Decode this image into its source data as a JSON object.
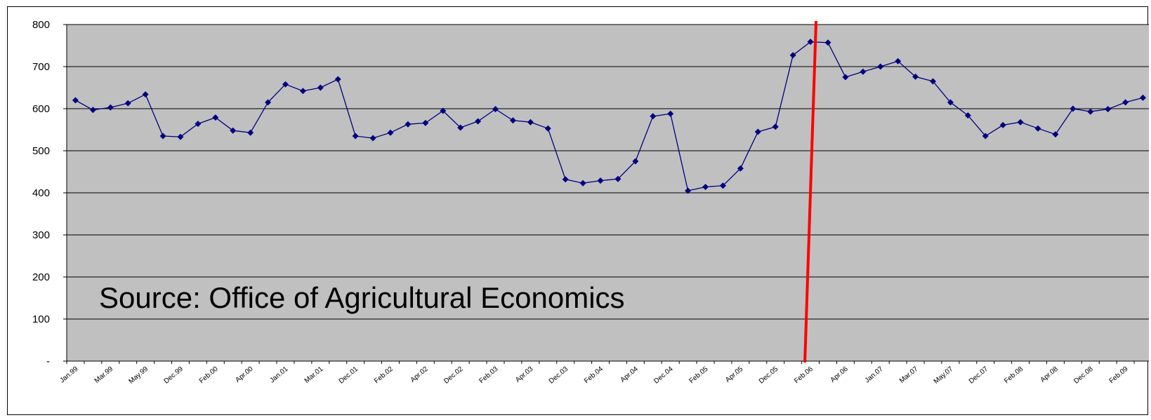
{
  "chart_data": {
    "type": "line",
    "annotation": "Source: Office of Agricultural Economics",
    "y_tick_labels": [
      "-",
      "100",
      "200",
      "300",
      "400",
      "500",
      "600",
      "700",
      "800"
    ],
    "ylim": [
      0,
      800
    ],
    "grid": true,
    "x_tick_labels": [
      "Jan.99",
      "Mar.99",
      "May.99",
      "Dec.99",
      "Feb.00",
      "Apr.00",
      "Jan.01",
      "Mar.01",
      "Dec.01",
      "Feb.02",
      "Apr.02",
      "Dec.02",
      "Feb.03",
      "Apr.03",
      "Dec.03",
      "Feb.04",
      "Apr.04",
      "Dec.04",
      "Feb.05",
      "Apr.05",
      "Dec.05",
      "Feb.06",
      "Apr.06",
      "Jan.07",
      "Mar.07",
      "May.07",
      "Dec.07",
      "Feb.08",
      "Apr.08",
      "Dec.08",
      "Feb.09"
    ],
    "series": [
      {
        "values": [
          620,
          597,
          603,
          613,
          634,
          535,
          533,
          564,
          579,
          548,
          543,
          615,
          658,
          642,
          650,
          670,
          535,
          530,
          543,
          563,
          566,
          595,
          555,
          570,
          599,
          572,
          568,
          553,
          432,
          423,
          429,
          433,
          475,
          582,
          588,
          405,
          414,
          417,
          458,
          545,
          557,
          727,
          759,
          757,
          675,
          688,
          700,
          713,
          676,
          665,
          615,
          584,
          535,
          561,
          568,
          553,
          539,
          600,
          593,
          599,
          615,
          626
        ],
        "color": "#000080",
        "marker": "diamond"
      }
    ],
    "marker_line": {
      "x_label": "Feb.06",
      "color": "#ff0000"
    },
    "colors": {
      "plot_background": "#c0c0c0",
      "gridline": "#000000",
      "series": "#000080",
      "marker_line": "#ff0000"
    }
  }
}
